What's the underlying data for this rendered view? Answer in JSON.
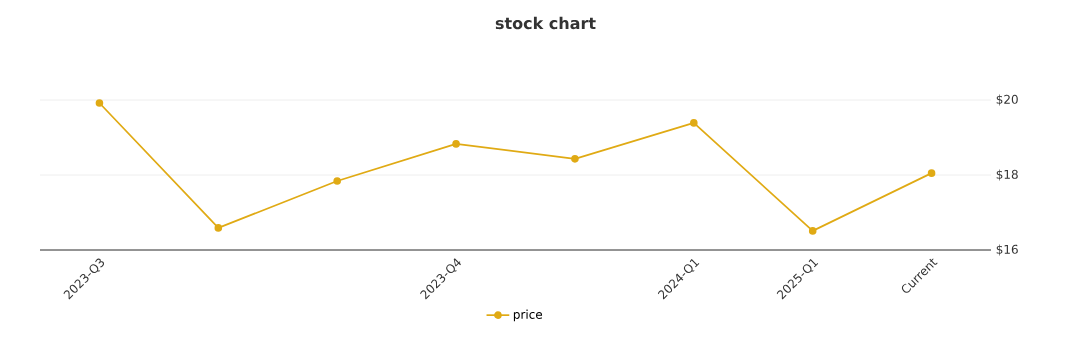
{
  "chart_data": {
    "type": "line",
    "title": "stock chart",
    "categories": [
      "2023-Q3",
      null,
      null,
      "2023-Q4",
      null,
      "2024-Q1",
      "2025-Q1",
      "Current"
    ],
    "series": [
      {
        "name": "price",
        "color": "#e0aa14",
        "values": [
          19.92,
          16.59,
          17.84,
          18.83,
          18.43,
          19.39,
          16.51,
          18.05
        ]
      }
    ],
    "ylim": [
      16,
      20
    ],
    "yticks": [
      {
        "value": 16,
        "label": "$16"
      },
      {
        "value": 18,
        "label": "$18"
      },
      {
        "value": 20,
        "label": "$20"
      }
    ],
    "grid": "y",
    "legend": "bottom",
    "marker": "circle",
    "line_style": "solid"
  }
}
